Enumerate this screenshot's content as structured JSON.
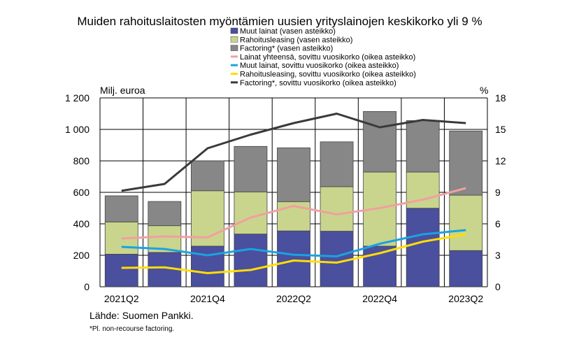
{
  "chart_data": {
    "type": "bar",
    "title": "Muiden rahoituslaitosten myöntämien uusien yrityslainojen keskikorko yli 9 %",
    "ylabel_left": "Milj. euroa",
    "ylabel_right": "%",
    "ylim_left": [
      0,
      1200
    ],
    "ylim_right": [
      0,
      18
    ],
    "yticks_left": [
      "0",
      "200",
      "400",
      "600",
      "800",
      "1 000",
      "1 200"
    ],
    "yticks_right": [
      "0",
      "3",
      "6",
      "9",
      "12",
      "15",
      "18"
    ],
    "categories": [
      "2021Q2",
      "2021Q3",
      "2021Q4",
      "2022Q1",
      "2022Q2",
      "2022Q3",
      "2022Q4",
      "2023Q1",
      "2023Q2"
    ],
    "xtick_labels": [
      "2021Q2",
      "",
      "2021Q4",
      "",
      "2022Q2",
      "",
      "2022Q4",
      "",
      "2023Q2"
    ],
    "stacked_series": [
      {
        "name": "Muut lainat (vasen asteikko)",
        "color": "#4a4f9e",
        "values": [
          207,
          218,
          258,
          335,
          355,
          353,
          258,
          499,
          230
        ]
      },
      {
        "name": "Rahoitusleasing (vasen asteikko)",
        "color": "#c9d58d",
        "values": [
          205,
          170,
          352,
          268,
          186,
          283,
          471,
          230,
          352
        ]
      },
      {
        "name": "Factoring* (vasen asteikko)",
        "color": "#878787",
        "values": [
          166,
          154,
          190,
          289,
          342,
          285,
          385,
          327,
          408
        ]
      }
    ],
    "line_series": [
      {
        "name": "Lainat yhteensä, sovittu vuosikorko (oikea asteikko)",
        "color": "#f0a0a0",
        "values": [
          4.6,
          4.8,
          4.7,
          6.6,
          7.7,
          6.9,
          7.5,
          8.3,
          9.4
        ]
      },
      {
        "name": "Muut lainat, sovittu vuosikorko (oikea asteikko)",
        "color": "#1aa3e0",
        "values": [
          3.8,
          3.6,
          3.0,
          3.6,
          3.05,
          2.9,
          4.1,
          5.0,
          5.4
        ]
      },
      {
        "name": "Rahoitusleasing, sovittu vuosikorko (oikea asteikko)",
        "color": "#ffdd00",
        "values": [
          1.8,
          1.85,
          1.3,
          1.6,
          2.5,
          2.3,
          3.2,
          4.3,
          5.0
        ]
      },
      {
        "name": "Factoring*, sovittu vuosikorko (oikea asteikko)",
        "color": "#3a3a3a",
        "values": [
          9.15,
          9.8,
          13.2,
          14.5,
          15.6,
          16.5,
          15.2,
          15.9,
          15.6
        ]
      }
    ],
    "grid": true,
    "legend_placement": "top-center"
  },
  "source": "Lähde: Suomen Pankki.",
  "footnote": "*Pl. non-recourse factoring."
}
